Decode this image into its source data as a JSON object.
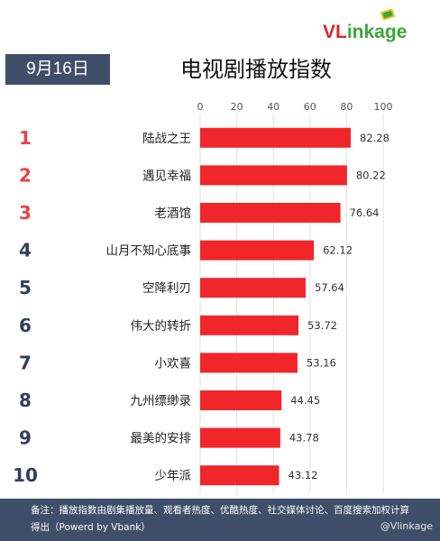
{
  "logo": {
    "text": "VLinkage",
    "prefix": "VL",
    "suffix": "inkage"
  },
  "header": {
    "date": "9月16日",
    "title": "电视剧播放指数"
  },
  "chart_data": {
    "type": "bar",
    "orientation": "horizontal",
    "title": "电视剧播放指数",
    "ranks": [
      "1",
      "2",
      "3",
      "4",
      "5",
      "6",
      "7",
      "8",
      "9",
      "10"
    ],
    "categories": [
      "陆战之王",
      "遇见幸福",
      "老酒馆",
      "山月不知心底事",
      "空降利刃",
      "伟大的转折",
      "小欢喜",
      "九州缥缈录",
      "最美的安排",
      "少年派"
    ],
    "values": [
      82.28,
      80.22,
      76.64,
      62.12,
      57.64,
      53.72,
      53.16,
      44.45,
      43.78,
      43.12
    ],
    "value_labels": [
      "82.28",
      "80.22",
      "76.64",
      "62.12",
      "57.64",
      "53.72",
      "53.16",
      "44.45",
      "43.78",
      "43.12"
    ],
    "xticks": [
      "0",
      "20",
      "40",
      "60",
      "80",
      "100"
    ],
    "xlim": [
      0,
      100
    ],
    "grid": true,
    "colors": {
      "bar": "#f0262a",
      "rank_top3": "#e8424a",
      "rank_other": "#2e3f5e",
      "grid": "#e2e2e2"
    }
  },
  "footer": {
    "note": "备注：播放指数由剧集播放量、观看者热度、优酷热度、社交媒体讨论、百度搜索加权计算得出（Powerd by Vbank）",
    "weibo": "@Vlinkage"
  }
}
